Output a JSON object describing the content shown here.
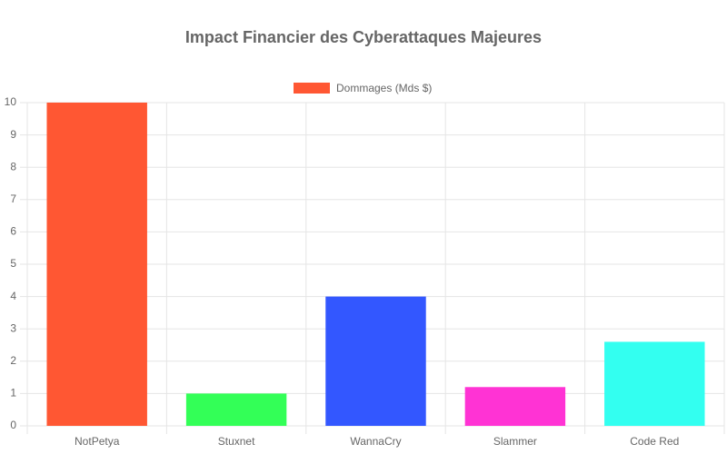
{
  "chart_data": {
    "type": "bar",
    "title": "Impact Financier des Cyberattaques Majeures",
    "categories": [
      "NotPetya",
      "Stuxnet",
      "WannaCry",
      "Slammer",
      "Code Red"
    ],
    "series": [
      {
        "name": "Dommages (Mds $)",
        "colors": [
          "#FF5733",
          "#33FF57",
          "#3357FF",
          "#FF33D4",
          "#33FFF0"
        ],
        "values": [
          10,
          1,
          4,
          1.2,
          2.6
        ]
      }
    ],
    "ylim": [
      0,
      10
    ],
    "yticks": [
      0,
      1,
      2,
      3,
      4,
      5,
      6,
      7,
      8,
      9,
      10
    ],
    "grid": true,
    "legend": "top"
  }
}
